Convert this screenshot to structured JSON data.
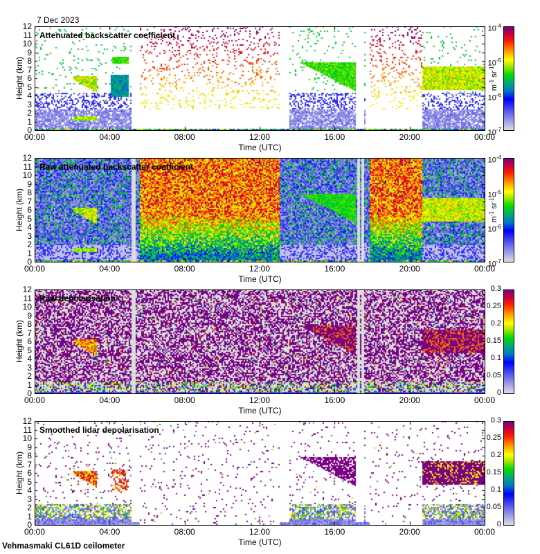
{
  "date": "7 Dec 2023",
  "footer": "Vehmasmaki CL61D ceilometer",
  "chart_data": [
    {
      "type": "heatmap",
      "title": "Attenuated backscatter coefficient",
      "xlabel": "Time (UTC)",
      "ylabel": "Height (km)",
      "xticks": [
        "00:00",
        "04:00",
        "08:00",
        "12:00",
        "16:00",
        "20:00",
        "00:00"
      ],
      "yticks": [
        "0",
        "1",
        "2",
        "3",
        "4",
        "5",
        "6",
        "7",
        "8",
        "9",
        "10",
        "11",
        "12"
      ],
      "xlim_hours": [
        0,
        24
      ],
      "ylim_km": [
        0,
        12
      ],
      "colorbar": {
        "scale": "log",
        "range": [
          1e-07,
          0.0001
        ],
        "ticks": [
          "10-7",
          "10-6",
          "10-5",
          "10-4"
        ],
        "unit": "m-1 sr-1"
      },
      "features": [
        {
          "name": "cloud layer",
          "t_hours": [
            2.0,
            3.4
          ],
          "h_km": [
            4.2,
            6.3
          ],
          "level": "1e-5"
        },
        {
          "name": "cloud layer",
          "t_hours": [
            4.1,
            5.0
          ],
          "h_km": [
            7.8,
            8.6
          ],
          "level": "5e-6"
        },
        {
          "name": "cloud layer",
          "t_hours": [
            4.0,
            5.0
          ],
          "h_km": [
            4.0,
            6.5
          ],
          "level": "3e-6"
        },
        {
          "name": "low cloud",
          "t_hours": [
            2.0,
            3.3
          ],
          "h_km": [
            1.3,
            1.8
          ],
          "level": "1e-5"
        },
        {
          "name": "cloud layer",
          "t_hours": [
            14.0,
            17.1
          ],
          "h_km": [
            5.0,
            8.0
          ],
          "level": "3e-6"
        },
        {
          "name": "cloud layer",
          "t_hours": [
            20.6,
            24.0
          ],
          "h_km": [
            4.7,
            8.0
          ],
          "level": "1e-5"
        },
        {
          "name": "data gap",
          "t_hours": [
            13.0,
            13.6
          ],
          "h_km": [
            0.5,
            12
          ]
        },
        {
          "name": "data gap",
          "t_hours": [
            17.2,
            17.6
          ],
          "h_km": [
            0.5,
            12
          ]
        }
      ]
    },
    {
      "type": "heatmap",
      "title": "Raw attenuated backscatter coefficient",
      "xlabel": "Time (UTC)",
      "ylabel": "Height (km)",
      "xticks": [
        "00:00",
        "04:00",
        "08:00",
        "12:00",
        "16:00",
        "20:00",
        "00:00"
      ],
      "yticks": [
        "0",
        "1",
        "2",
        "3",
        "4",
        "5",
        "6",
        "7",
        "8",
        "9",
        "10",
        "11",
        "12"
      ],
      "xlim_hours": [
        0,
        24
      ],
      "ylim_km": [
        0,
        12
      ],
      "colorbar": {
        "scale": "log",
        "range": [
          1e-07,
          0.0001
        ],
        "ticks": [
          "10-7",
          "10-6",
          "10-5",
          "10-4"
        ],
        "unit": "m-1 sr-1"
      }
    },
    {
      "type": "heatmap",
      "title": "Raw depolarisation",
      "xlabel": "Time (UTC)",
      "ylabel": "Height (km)",
      "xticks": [
        "00:00",
        "04:00",
        "08:00",
        "12:00",
        "16:00",
        "20:00",
        "00:00"
      ],
      "yticks": [
        "0",
        "1",
        "2",
        "3",
        "4",
        "5",
        "6",
        "7",
        "8",
        "9",
        "10",
        "11",
        "12"
      ],
      "xlim_hours": [
        0,
        24
      ],
      "ylim_km": [
        0,
        12
      ],
      "colorbar": {
        "scale": "linear",
        "range": [
          0,
          0.3
        ],
        "ticks": [
          "0",
          "0.05",
          "0.1",
          "0.15",
          "0.2",
          "0.25",
          "0.3"
        ],
        "unit": ""
      }
    },
    {
      "type": "heatmap",
      "title": "Smoothed lidar depolarisation",
      "xlabel": "Time (UTC)",
      "ylabel": "Height (km)",
      "xticks": [
        "00:00",
        "04:00",
        "08:00",
        "12:00",
        "16:00",
        "20:00",
        "00:00"
      ],
      "yticks": [
        "0",
        "1",
        "2",
        "3",
        "4",
        "5",
        "6",
        "7",
        "8",
        "9",
        "10",
        "11",
        "12"
      ],
      "xlim_hours": [
        0,
        24
      ],
      "ylim_km": [
        0,
        12
      ],
      "colorbar": {
        "scale": "linear",
        "range": [
          0,
          0.3
        ],
        "ticks": [
          "0",
          "0.05",
          "0.1",
          "0.15",
          "0.2",
          "0.25",
          "0.3"
        ],
        "unit": ""
      }
    }
  ]
}
